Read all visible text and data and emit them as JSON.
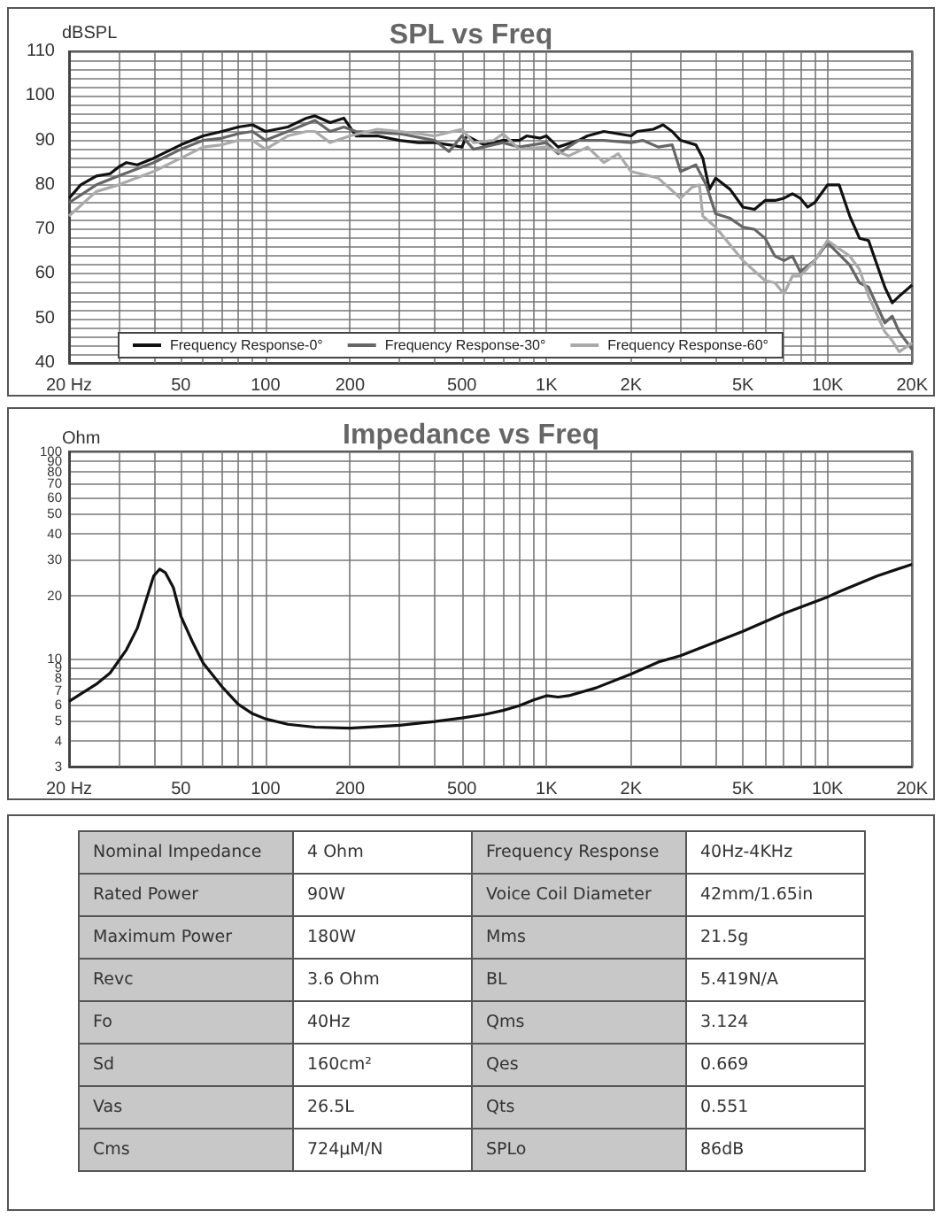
{
  "chart_data": [
    {
      "type": "line",
      "title": "SPL vs Freq",
      "ylabel": "dBSPL",
      "log": "x",
      "grid": true,
      "legend": "bottom",
      "xlim": [
        20,
        20000
      ],
      "xticks": [
        {
          "value": 20,
          "label": "20 Hz"
        },
        {
          "value": 30,
          "label": null
        },
        {
          "value": 40,
          "label": null
        },
        50,
        {
          "value": 60,
          "label": null
        },
        {
          "value": 70,
          "label": null
        },
        {
          "value": 80,
          "label": null
        },
        {
          "value": 90,
          "label": null
        },
        100,
        200,
        {
          "value": 300,
          "label": null
        },
        {
          "value": 400,
          "label": null
        },
        500,
        {
          "value": 600,
          "label": null
        },
        {
          "value": 700,
          "label": null
        },
        {
          "value": 800,
          "label": null
        },
        {
          "value": 900,
          "label": null
        },
        {
          "value": 1000,
          "label": "1K"
        },
        {
          "value": 2000,
          "label": "2K"
        },
        {
          "value": 3000,
          "label": null
        },
        {
          "value": 4000,
          "label": null
        },
        {
          "value": 5000,
          "label": "5K"
        },
        {
          "value": 6000,
          "label": null
        },
        {
          "value": 7000,
          "label": null
        },
        {
          "value": 8000,
          "label": null
        },
        {
          "value": 9000,
          "label": null
        },
        {
          "value": 10000,
          "label": "10K"
        },
        {
          "value": 20000,
          "label": "20K"
        }
      ],
      "ylim": [
        40,
        110
      ],
      "yticks": [
        40,
        {
          "value": 42,
          "label": null
        },
        {
          "value": 44,
          "label": null
        },
        {
          "value": 46,
          "label": null
        },
        {
          "value": 48,
          "label": null
        },
        50,
        {
          "value": 52,
          "label": null
        },
        {
          "value": 54,
          "label": null
        },
        {
          "value": 56,
          "label": null
        },
        {
          "value": 58,
          "label": null
        },
        60,
        {
          "value": 62,
          "label": null
        },
        {
          "value": 64,
          "label": null
        },
        {
          "value": 66,
          "label": null
        },
        {
          "value": 68,
          "label": null
        },
        70,
        {
          "value": 72,
          "label": null
        },
        {
          "value": 74,
          "label": null
        },
        {
          "value": 76,
          "label": null
        },
        {
          "value": 78,
          "label": null
        },
        80,
        {
          "value": 82,
          "label": null
        },
        {
          "value": 84,
          "label": null
        },
        {
          "value": 86,
          "label": null
        },
        {
          "value": 88,
          "label": null
        },
        90,
        {
          "value": 92,
          "label": null
        },
        {
          "value": 94,
          "label": null
        },
        {
          "value": 96,
          "label": null
        },
        {
          "value": 98,
          "label": null
        },
        100,
        {
          "value": 102,
          "label": null
        },
        {
          "value": 104,
          "label": null
        },
        {
          "value": 106,
          "label": null
        },
        {
          "value": 108,
          "label": null
        },
        110
      ],
      "series": [
        {
          "name": "Frequency Response-0°",
          "color": "#111111",
          "x": [
            20,
            22,
            25,
            28,
            30,
            32,
            35,
            40,
            50,
            60,
            70,
            80,
            90,
            100,
            120,
            140,
            150,
            170,
            190,
            210,
            250,
            300,
            350,
            400,
            450,
            500,
            520,
            600,
            700,
            800,
            850,
            950,
            1000,
            1100,
            1300,
            1400,
            1600,
            2000,
            2100,
            2400,
            2600,
            2800,
            3000,
            3400,
            3600,
            3800,
            4000,
            4500,
            5000,
            5500,
            6000,
            6500,
            7000,
            7500,
            8000,
            8500,
            9000,
            10000,
            11000,
            12000,
            13000,
            14000,
            16000,
            17000,
            18000,
            20000
          ],
          "values": [
            77,
            80,
            82,
            82.5,
            84,
            85,
            84.5,
            86,
            89,
            91,
            92,
            93,
            93.5,
            92,
            93,
            95,
            95.5,
            94,
            95,
            91,
            91,
            90,
            89.5,
            89.5,
            89,
            88.5,
            91,
            89,
            90,
            90,
            91,
            90.5,
            91,
            88.5,
            90,
            91,
            92,
            91,
            92,
            92.5,
            93.5,
            92,
            90,
            89,
            86,
            79,
            81.5,
            79,
            75,
            74.5,
            76.5,
            76.5,
            77,
            78,
            77,
            75,
            76,
            80,
            80,
            73,
            68,
            67.5,
            57,
            53.5,
            55,
            57.5
          ]
        },
        {
          "name": "Frequency Response-30°",
          "color": "#666666",
          "x": [
            20,
            25,
            30,
            40,
            50,
            60,
            70,
            80,
            90,
            100,
            120,
            150,
            170,
            190,
            210,
            300,
            400,
            450,
            500,
            550,
            700,
            800,
            1000,
            1100,
            1300,
            1600,
            2000,
            2200,
            2500,
            2800,
            3000,
            3400,
            3700,
            4000,
            4500,
            5000,
            5500,
            6000,
            6500,
            7000,
            7500,
            8000,
            9000,
            10000,
            12000,
            13000,
            14000,
            16000,
            17000,
            18000,
            20000
          ],
          "values": [
            76,
            80,
            82,
            85,
            88,
            90,
            90.5,
            91.5,
            92,
            90,
            92,
            94.5,
            92,
            93,
            92,
            91.5,
            90,
            87.5,
            91,
            88,
            89.5,
            88.5,
            89.5,
            87,
            90,
            90,
            89.5,
            90,
            88.5,
            89,
            83,
            84.5,
            80,
            73.5,
            72.5,
            70.5,
            70,
            68,
            64,
            63,
            64,
            60.5,
            63,
            67,
            62,
            58,
            57,
            49,
            50.5,
            47,
            43
          ]
        },
        {
          "name": "Frequency Response-60°",
          "color": "#aaaaaa",
          "x": [
            20,
            25,
            30,
            40,
            50,
            60,
            70,
            80,
            90,
            100,
            120,
            140,
            150,
            170,
            200,
            250,
            300,
            350,
            400,
            500,
            550,
            650,
            700,
            800,
            1000,
            1200,
            1400,
            1600,
            1800,
            2000,
            2500,
            3000,
            3300,
            3500,
            3600,
            4000,
            5000,
            6000,
            6500,
            7000,
            7500,
            8000,
            9000,
            10000,
            12000,
            13000,
            14000,
            16000,
            17000,
            18000,
            20000
          ],
          "values": [
            73,
            78.5,
            80,
            83,
            86,
            88.5,
            89,
            90,
            90,
            88,
            91,
            92,
            92,
            89.5,
            91,
            92.5,
            92,
            91.5,
            91,
            92.5,
            89.5,
            90,
            91.5,
            88,
            88.5,
            86.5,
            88.5,
            85,
            87,
            83,
            81.5,
            77,
            79.5,
            80,
            73,
            70.5,
            63,
            58.5,
            58,
            55.5,
            59.5,
            59.5,
            63,
            67.5,
            64,
            61,
            55,
            47,
            45,
            42.5,
            44.5
          ]
        }
      ]
    },
    {
      "type": "line",
      "title": "Impedance vs Freq",
      "ylabel": "Ohm",
      "log": "xy",
      "grid": true,
      "xlim": [
        20,
        20000
      ],
      "xticks": [
        {
          "value": 20,
          "label": "20 Hz"
        },
        {
          "value": 30,
          "label": null
        },
        {
          "value": 40,
          "label": null
        },
        50,
        {
          "value": 60,
          "label": null
        },
        {
          "value": 70,
          "label": null
        },
        {
          "value": 80,
          "label": null
        },
        {
          "value": 90,
          "label": null
        },
        100,
        200,
        {
          "value": 300,
          "label": null
        },
        {
          "value": 400,
          "label": null
        },
        500,
        {
          "value": 600,
          "label": null
        },
        {
          "value": 700,
          "label": null
        },
        {
          "value": 800,
          "label": null
        },
        {
          "value": 900,
          "label": null
        },
        {
          "value": 1000,
          "label": "1K"
        },
        {
          "value": 2000,
          "label": "2K"
        },
        {
          "value": 3000,
          "label": null
        },
        {
          "value": 4000,
          "label": null
        },
        {
          "value": 5000,
          "label": "5K"
        },
        {
          "value": 6000,
          "label": null
        },
        {
          "value": 7000,
          "label": null
        },
        {
          "value": 8000,
          "label": null
        },
        {
          "value": 9000,
          "label": null
        },
        {
          "value": 10000,
          "label": "10K"
        },
        {
          "value": 20000,
          "label": "20K"
        }
      ],
      "ylim": [
        3,
        100
      ],
      "yticks": [
        3,
        4,
        5,
        6,
        7,
        8,
        9,
        10,
        20,
        30,
        40,
        50,
        60,
        70,
        80,
        90,
        100
      ],
      "series": [
        {
          "color": "#111111",
          "x": [
            20,
            25,
            28,
            32,
            35,
            38,
            40,
            42,
            44,
            47,
            50,
            55,
            60,
            70,
            80,
            90,
            100,
            120,
            150,
            200,
            300,
            400,
            500,
            600,
            700,
            800,
            900,
            1000,
            1100,
            1200,
            1500,
            2000,
            2500,
            3000,
            4000,
            5000,
            7000,
            10000,
            11000,
            15000,
            20000
          ],
          "values": [
            6.2,
            7.5,
            8.5,
            11,
            14,
            20,
            25,
            27,
            26,
            22,
            16,
            12,
            9.5,
            7.3,
            6,
            5.4,
            5.1,
            4.8,
            4.65,
            4.6,
            4.75,
            4.95,
            5.15,
            5.35,
            5.6,
            5.9,
            6.3,
            6.6,
            6.5,
            6.6,
            7.2,
            8.4,
            9.6,
            10.3,
            12,
            13.5,
            16.5,
            19.8,
            21,
            25,
            28.5
          ]
        }
      ]
    },
    {
      "type": "other",
      "annotations": [
        "Nominal Impedance",
        "4 Ohm",
        "Frequency Response",
        "40Hz-4KHz",
        "Rated Power",
        "90W",
        "Voice Coil Diameter",
        "42mm/1.65in",
        "Maximum Power",
        "180W",
        "Mms",
        "21.5g",
        "Revc",
        "3.6 Ohm",
        "BL",
        "5.419N/A",
        "Fo",
        "40Hz",
        "Qms",
        "3.124",
        "Sd",
        "160cm²",
        "Qes",
        "0.669",
        "Vas",
        "26.5L",
        "Qts",
        "0.551",
        "Cms",
        "724µM/N",
        "SPLo",
        "86dB"
      ]
    }
  ]
}
